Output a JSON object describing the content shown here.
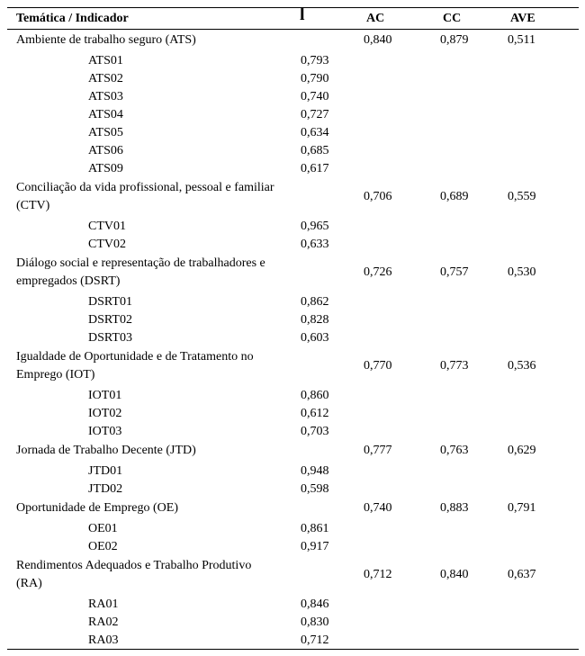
{
  "colors": {
    "text": "#000000",
    "rule": "#000000",
    "background": "#ffffff"
  },
  "table": {
    "headers": [
      "Temática / Indicador",
      "l",
      "AC",
      "CC",
      "AVE"
    ],
    "groups": [
      {
        "name": "Ambiente de trabalho seguro (ATS)",
        "ac": "0,840",
        "cc": "0,879",
        "ave": "0,511",
        "indicators": [
          {
            "code": "ATS01",
            "loading": "0,793"
          },
          {
            "code": "ATS02",
            "loading": "0,790"
          },
          {
            "code": "ATS03",
            "loading": "0,740"
          },
          {
            "code": "ATS04",
            "loading": "0,727"
          },
          {
            "code": "ATS05",
            "loading": "0,634"
          },
          {
            "code": "ATS06",
            "loading": "0,685"
          },
          {
            "code": "ATS09",
            "loading": "0,617"
          }
        ]
      },
      {
        "name": "Conciliação da vida profissional, pessoal e familiar (CTV)",
        "ac": "0,706",
        "cc": "0,689",
        "ave": "0,559",
        "indicators": [
          {
            "code": "CTV01",
            "loading": "0,965"
          },
          {
            "code": "CTV02",
            "loading": "0,633"
          }
        ]
      },
      {
        "name": "Diálogo social e representação de trabalhadores e empregados (DSRT)",
        "ac": "0,726",
        "cc": "0,757",
        "ave": "0,530",
        "indicators": [
          {
            "code": "DSRT01",
            "loading": "0,862"
          },
          {
            "code": "DSRT02",
            "loading": "0,828"
          },
          {
            "code": "DSRT03",
            "loading": "0,603"
          }
        ]
      },
      {
        "name": "Igualdade de Oportunidade e de Tratamento no Emprego (IOT)",
        "ac": "0,770",
        "cc": "0,773",
        "ave": "0,536",
        "indicators": [
          {
            "code": "IOT01",
            "loading": "0,860"
          },
          {
            "code": "IOT02",
            "loading": "0,612"
          },
          {
            "code": "IOT03",
            "loading": "0,703"
          }
        ]
      },
      {
        "name": "Jornada de Trabalho Decente (JTD)",
        "ac": "0,777",
        "cc": "0,763",
        "ave": "0,629",
        "indicators": [
          {
            "code": "JTD01",
            "loading": "0,948"
          },
          {
            "code": "JTD02",
            "loading": "0,598"
          }
        ]
      },
      {
        "name": "Oportunidade de Emprego (OE)",
        "ac": "0,740",
        "cc": "0,883",
        "ave": "0,791",
        "indicators": [
          {
            "code": "OE01",
            "loading": "0,861"
          },
          {
            "code": "OE02",
            "loading": "0,917"
          }
        ]
      },
      {
        "name": "Rendimentos Adequados e Trabalho Produtivo (RA)",
        "ac": "0,712",
        "cc": "0,840",
        "ave": "0,637",
        "indicators": [
          {
            "code": "RA01",
            "loading": "0,846"
          },
          {
            "code": "RA02",
            "loading": "0,830"
          },
          {
            "code": "RA03",
            "loading": "0,712"
          }
        ]
      }
    ]
  }
}
